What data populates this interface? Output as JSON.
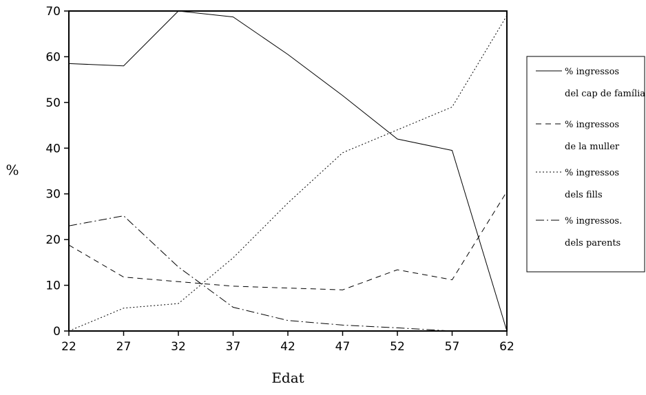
{
  "chart_data": {
    "type": "line",
    "xlabel": "Edat",
    "ylabel": "%",
    "x": [
      22,
      27,
      32,
      37,
      42,
      47,
      52,
      57,
      62
    ],
    "xticks": [
      "22",
      "27",
      "32",
      "37",
      "42",
      "47",
      "52",
      "57",
      "62"
    ],
    "yticks": [
      "0",
      "10",
      "20",
      "30",
      "40",
      "50",
      "60",
      "70"
    ],
    "xlim": [
      22,
      62
    ],
    "ylim": [
      0,
      70
    ],
    "grid": false,
    "legend_position": "right",
    "series": [
      {
        "name": "% ingressos del cap de família",
        "line1": "% ingressos",
        "line2": "del cap de família",
        "dash": "solid",
        "values": [
          58.5,
          58,
          70,
          68.7,
          60.5,
          51.5,
          42,
          39.5,
          0
        ]
      },
      {
        "name": "% ingressos de la muller",
        "line1": "% ingressos",
        "line2": "de la muller",
        "dash": "dashed",
        "values": [
          18.8,
          11.8,
          10.8,
          9.8,
          9.4,
          9,
          13.4,
          11.2,
          30.5
        ]
      },
      {
        "name": "% ingressos dels fills",
        "line1": "% ingressos",
        "line2": "dels fills",
        "dash": "dotted",
        "values": [
          0,
          5,
          6,
          16,
          28,
          39,
          44,
          49,
          69
        ]
      },
      {
        "name": "% ingressos. dels parents",
        "line1": "% ingressos.",
        "line2": "dels parents",
        "dash": "dashdot",
        "values": [
          23,
          25.2,
          14,
          5.2,
          2.3,
          1.3,
          0.7,
          0,
          0
        ]
      }
    ]
  }
}
